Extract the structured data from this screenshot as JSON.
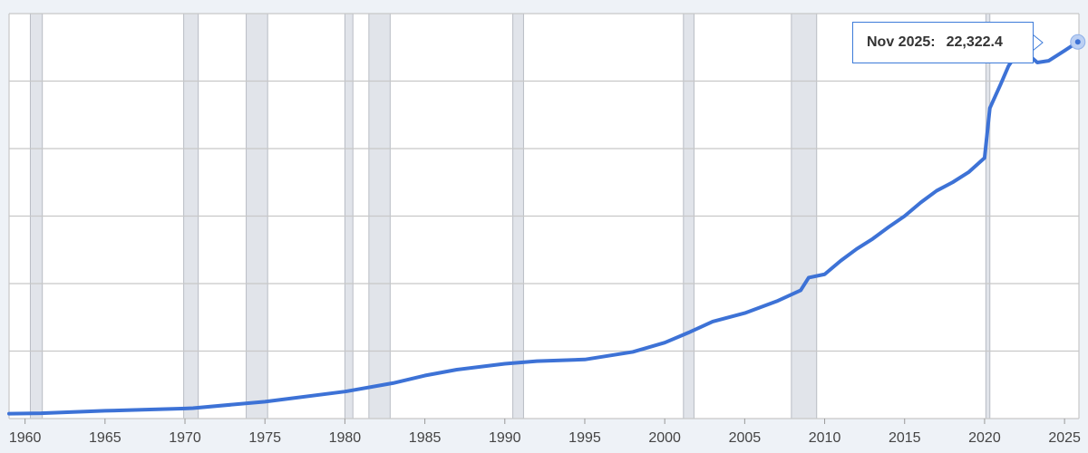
{
  "chart_data": {
    "type": "line",
    "title": "",
    "xlabel": "",
    "ylabel": "",
    "x_ticks": [
      "1960",
      "1965",
      "1970",
      "1975",
      "1980",
      "1985",
      "1990",
      "1995",
      "2000",
      "2005",
      "2010",
      "2015",
      "2020",
      "2025"
    ],
    "xlim": [
      1959.0,
      2025.9
    ],
    "ylim": [
      0,
      24000
    ],
    "grid": true,
    "y_tick_labels_visible": false,
    "recessions": [
      [
        1960.33,
        1961.08
      ],
      [
        1969.92,
        1970.83
      ],
      [
        1973.83,
        1975.17
      ],
      [
        1980.0,
        1980.5
      ],
      [
        1981.5,
        1982.83
      ],
      [
        1990.5,
        1991.17
      ],
      [
        2001.17,
        2001.83
      ],
      [
        2007.92,
        2009.5
      ],
      [
        2020.08,
        2020.33
      ]
    ],
    "series": [
      {
        "color": "#3d72d6",
        "points": [
          [
            1959.0,
            290
          ],
          [
            1961.0,
            315
          ],
          [
            1965.0,
            460
          ],
          [
            1970.0,
            600
          ],
          [
            1970.5,
            620
          ],
          [
            1975.0,
            1000
          ],
          [
            1980.0,
            1600
          ],
          [
            1983.0,
            2100
          ],
          [
            1985.0,
            2550
          ],
          [
            1987.0,
            2900
          ],
          [
            1990.0,
            3250
          ],
          [
            1992.0,
            3400
          ],
          [
            1995.0,
            3500
          ],
          [
            1998.0,
            3950
          ],
          [
            2000.0,
            4500
          ],
          [
            2001.5,
            5100
          ],
          [
            2003.0,
            5750
          ],
          [
            2005.0,
            6250
          ],
          [
            2007.0,
            6950
          ],
          [
            2008.5,
            7600
          ],
          [
            2009.0,
            8350
          ],
          [
            2010.0,
            8550
          ],
          [
            2011.0,
            9350
          ],
          [
            2012.0,
            10050
          ],
          [
            2013.0,
            10650
          ],
          [
            2014.0,
            11350
          ],
          [
            2015.0,
            12000
          ],
          [
            2016.0,
            12800
          ],
          [
            2017.0,
            13500
          ],
          [
            2018.0,
            14000
          ],
          [
            2019.0,
            14600
          ],
          [
            2020.0,
            15450
          ],
          [
            2020.33,
            18400
          ],
          [
            2021.0,
            19800
          ],
          [
            2021.5,
            20900
          ],
          [
            2022.0,
            21600
          ],
          [
            2022.7,
            21600
          ],
          [
            2023.3,
            21100
          ],
          [
            2024.0,
            21200
          ],
          [
            2025.0,
            21800
          ],
          [
            2025.83,
            22322.4
          ]
        ]
      }
    ],
    "tooltip": {
      "date": "Nov 2025:",
      "value": "22,322.4",
      "point": [
        2025.83,
        22322.4
      ]
    }
  },
  "colors": {
    "background": "#eef2f7",
    "plot_background": "#ffffff",
    "grid": "#c8c8c8",
    "recession": "#e1e4ea",
    "line": "#3d72d6",
    "tooltip_border": "#3d7bd9"
  }
}
